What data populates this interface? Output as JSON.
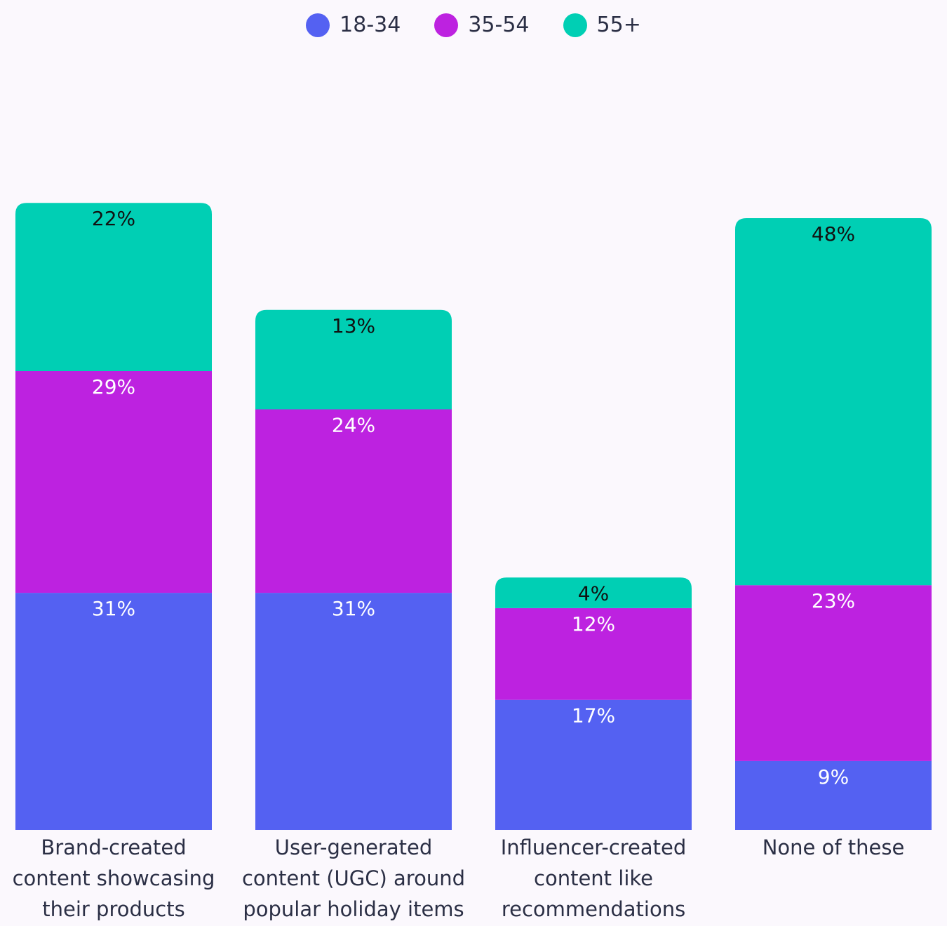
{
  "chart_data": {
    "type": "bar",
    "stacked": true,
    "categories": [
      [
        "Brand-created",
        "content showcasing",
        "their products"
      ],
      [
        "User-generated",
        "content (UGC) around",
        "popular holiday items"
      ],
      [
        "Influencer-created",
        "content like",
        "recommendations"
      ],
      [
        "None of these"
      ]
    ],
    "series": [
      {
        "name": "18-34",
        "color": "#5461f2",
        "values": [
          31,
          31,
          17,
          9
        ],
        "labels": [
          "31%",
          "31%",
          "17%",
          "9%"
        ],
        "label_color": "#ffffff"
      },
      {
        "name": "35-54",
        "color": "#bd22e0",
        "values": [
          29,
          24,
          12,
          23
        ],
        "labels": [
          "29%",
          "24%",
          "12%",
          "23%"
        ],
        "label_color": "#ffffff"
      },
      {
        "name": "55+",
        "color": "#00cfb4",
        "values": [
          22,
          13,
          4,
          48
        ],
        "labels": [
          "22%",
          "13%",
          "4%",
          "48%"
        ],
        "label_color": "#111111"
      }
    ],
    "legend_position": "top-center",
    "grid": false,
    "ylim": [
      0,
      100
    ]
  }
}
